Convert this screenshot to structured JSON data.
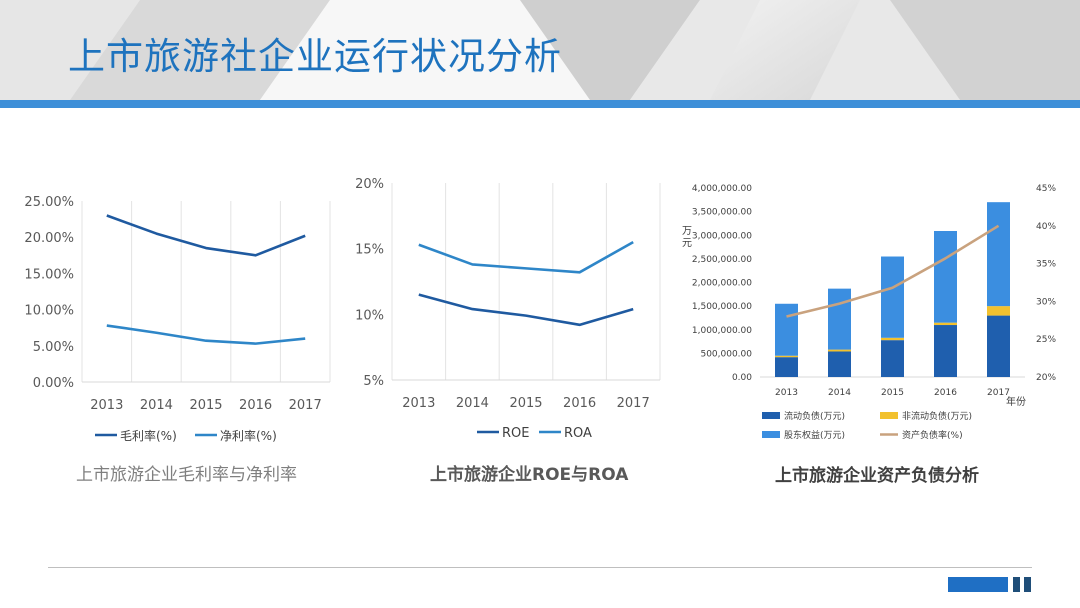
{
  "page": {
    "title": "上市旅游社企业运行状况分析"
  },
  "colors": {
    "accent": "#1e73be",
    "dark_line": "#1f5aa0",
    "light_line": "#2e86c8",
    "bar_dark": "#1f5fae",
    "bar_yellow": "#f2c12e",
    "bar_light": "#3b8ee0",
    "ratio_line": "#c9a27e"
  },
  "chart_data": [
    {
      "type": "line",
      "caption": "上市旅游企业毛利率与净利率",
      "categories": [
        "2013",
        "2014",
        "2015",
        "2016",
        "2017"
      ],
      "series": [
        {
          "name": "毛利率(%)",
          "values": [
            23.0,
            20.5,
            18.5,
            17.5,
            20.2
          ]
        },
        {
          "name": "净利率(%)",
          "values": [
            7.8,
            6.8,
            5.7,
            5.3,
            6.0
          ]
        }
      ],
      "ylim": [
        0,
        25
      ],
      "yticks": [
        "0.00%",
        "5.00%",
        "10.00%",
        "15.00%",
        "20.00%",
        "25.00%"
      ],
      "legend": "bottom",
      "grid": "vertical"
    },
    {
      "type": "line",
      "caption": "上市旅游企业ROE与ROA",
      "categories": [
        "2013",
        "2014",
        "2015",
        "2016",
        "2017"
      ],
      "series": [
        {
          "name": "ROE",
          "values": [
            11.5,
            10.4,
            9.9,
            9.2,
            10.4
          ]
        },
        {
          "name": "ROA",
          "values": [
            15.3,
            13.8,
            13.5,
            13.2,
            15.5
          ]
        }
      ],
      "ylim": [
        5,
        20
      ],
      "yticks": [
        "5%",
        "10%",
        "15%",
        "20%"
      ],
      "legend": "bottom",
      "grid": "vertical"
    },
    {
      "type": "bar",
      "stacked": true,
      "caption": "上市旅游企业资产负债分析",
      "categories": [
        "2013",
        "2014",
        "2015",
        "2016",
        "2017"
      ],
      "series": [
        {
          "name": "流动负债(万元)",
          "values": [
            420000,
            540000,
            780000,
            1100000,
            1300000
          ]
        },
        {
          "name": "非流动负债(万元)",
          "values": [
            30000,
            40000,
            50000,
            50000,
            200000
          ]
        },
        {
          "name": "股东权益(万元)",
          "values": [
            1100000,
            1290000,
            1720000,
            1940000,
            2200000
          ]
        }
      ],
      "line_series": {
        "name": "资产负债率(%)",
        "values": [
          28.0,
          29.7,
          31.8,
          35.7,
          40.0
        ]
      },
      "ylim": [
        0,
        4000000
      ],
      "yticks": [
        "0.00",
        "500,000.00",
        "1,000,000.00",
        "1,500,000.00",
        "2,000,000.00",
        "2,500,000.00",
        "3,000,000.00",
        "3,500,000.00",
        "4,000,000.00"
      ],
      "y2lim": [
        20,
        45
      ],
      "y2ticks": [
        "20%",
        "25%",
        "30%",
        "35%",
        "40%",
        "45%"
      ],
      "ylabel": "万元",
      "xlabel": "年份",
      "legend": "bottom"
    }
  ]
}
